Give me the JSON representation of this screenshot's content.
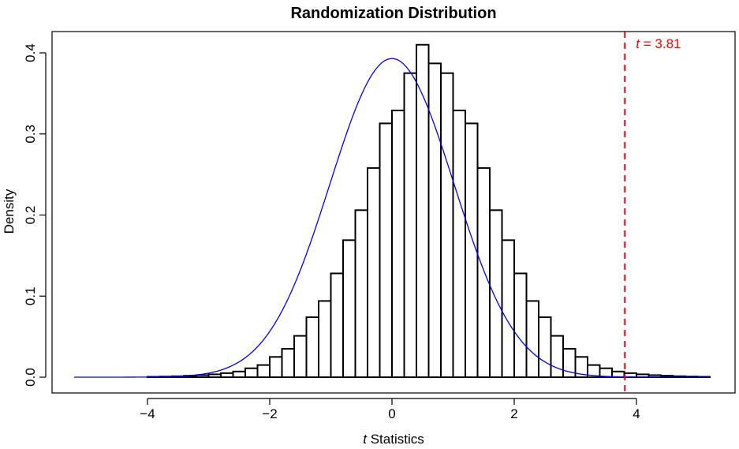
{
  "chart_data": {
    "type": "bar",
    "title": "Randomization Distribution",
    "xlabel": {
      "italic_part": "t",
      "rest": " Statistics"
    },
    "ylabel": "Density",
    "xlim": [
      -5.2,
      5.2
    ],
    "ylim": [
      0,
      0.42
    ],
    "xticks": [
      -4,
      -2,
      0,
      2,
      4
    ],
    "xtick_labels": [
      "−4",
      "−2",
      "0",
      "2",
      "4"
    ],
    "yticks": [
      0,
      0.1,
      0.2,
      0.3,
      0.4
    ],
    "ytick_labels": [
      "0.0",
      "0.1",
      "0.2",
      "0.3",
      "0.4"
    ],
    "bin_width": 0.2,
    "bins_start": -5.2,
    "histogram_density": [
      0,
      0,
      0,
      0,
      0,
      0,
      0.0005,
      0.0008,
      0.0012,
      0.0018,
      0.0025,
      0.0035,
      0.005,
      0.007,
      0.011,
      0.015,
      0.025,
      0.035,
      0.051,
      0.074,
      0.094,
      0.128,
      0.169,
      0.206,
      0.258,
      0.313,
      0.329,
      0.375,
      0.41,
      0.387,
      0.375,
      0.329,
      0.313,
      0.258,
      0.206,
      0.169,
      0.128,
      0.094,
      0.074,
      0.051,
      0.035,
      0.025,
      0.015,
      0.011,
      0.007,
      0.005,
      0.0035,
      0.0025,
      0.0018,
      0.0012,
      0.0008,
      0.0005
    ],
    "curve": {
      "type": "normal_density",
      "mean": 0,
      "sd": 1.015,
      "color": "#0000ff"
    },
    "reference_line": {
      "x": 3.81,
      "color": "#ff0000",
      "style": "dashed"
    },
    "annotation": {
      "italic_part": "t",
      "rest": " = 3.81",
      "color": "#ff0000",
      "anchor_x": 3.81
    }
  }
}
